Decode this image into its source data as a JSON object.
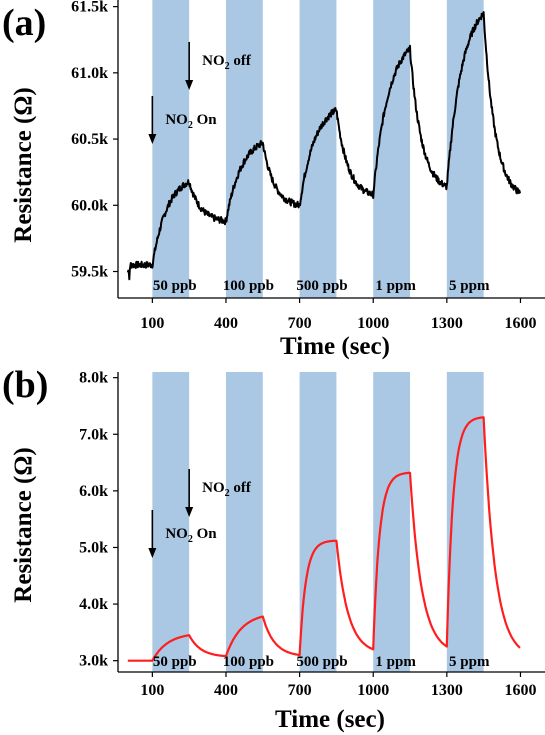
{
  "colors": {
    "band": "#aac8e4",
    "series_a": "#000000",
    "series_b": "#ff1e1e",
    "axis": "#000000"
  },
  "chart_data": [
    {
      "type": "line",
      "panel_label": "(a)",
      "xlabel": "Time (sec)",
      "ylabel": "Resistance (Ω)",
      "xlim": [
        -40,
        1700
      ],
      "ylim": [
        59.3,
        61.55
      ],
      "x_ticks": [
        100,
        400,
        700,
        1000,
        1300,
        1600
      ],
      "x_tick_labels": [
        "100",
        "400",
        "700",
        "1000",
        "1300",
        "1600"
      ],
      "y_ticks": [
        59.5,
        60.0,
        60.5,
        61.0,
        61.5
      ],
      "y_tick_labels": [
        "59.5k",
        "60.0k",
        "60.5k",
        "61.0k",
        "61.5k"
      ],
      "exposure_windows": [
        [
          100,
          250
        ],
        [
          400,
          550
        ],
        [
          700,
          850
        ],
        [
          1000,
          1150
        ],
        [
          1300,
          1450
        ]
      ],
      "concentration_labels": [
        "50 ppb",
        "100 ppb",
        "500 ppb",
        "1 ppm",
        "5 ppm"
      ],
      "annotations": {
        "on": {
          "main": "NO",
          "sub": "2",
          "rest": " On",
          "x": 100
        },
        "off": {
          "main": "NO",
          "sub": "2",
          "rest": " off",
          "x": 250
        }
      },
      "response": {
        "baseline": 59.55,
        "peaks": [
          60.18,
          60.47,
          60.72,
          61.18,
          61.45
        ],
        "ends": [
          59.88,
          60.0,
          60.08,
          60.14,
          60.09
        ],
        "recovery_end_x": 1600
      },
      "grid": false,
      "legend": "none"
    },
    {
      "type": "line",
      "panel_label": "(b)",
      "xlabel": "Time (sec)",
      "ylabel": "Resistance (Ω)",
      "xlim": [
        -40,
        1700
      ],
      "ylim": [
        2.8,
        8.1
      ],
      "x_ticks": [
        100,
        400,
        700,
        1000,
        1300,
        1600
      ],
      "x_tick_labels": [
        "100",
        "400",
        "700",
        "1000",
        "1300",
        "1600"
      ],
      "y_ticks": [
        3.0,
        4.0,
        5.0,
        6.0,
        7.0,
        8.0
      ],
      "y_tick_labels": [
        "3.0k",
        "4.0k",
        "5.0k",
        "6.0k",
        "7.0k",
        "8.0k"
      ],
      "exposure_windows": [
        [
          100,
          250
        ],
        [
          400,
          550
        ],
        [
          700,
          850
        ],
        [
          1000,
          1150
        ],
        [
          1300,
          1450
        ]
      ],
      "concentration_labels": [
        "50 ppb",
        "100 ppb",
        "500 ppb",
        "1 ppm",
        "5 ppm"
      ],
      "annotations": {
        "on": {
          "main": "NO",
          "sub": "2",
          "rest": " On",
          "x": 100
        },
        "off": {
          "main": "NO",
          "sub": "2",
          "rest": " off",
          "x": 250
        }
      },
      "response": {
        "baseline": 3.0,
        "peaks": [
          3.45,
          3.78,
          5.12,
          6.32,
          7.3
        ],
        "ends": [
          3.08,
          3.1,
          3.2,
          3.25,
          3.22
        ],
        "recovery_end_x": 1600
      },
      "grid": false,
      "legend": "none"
    }
  ]
}
